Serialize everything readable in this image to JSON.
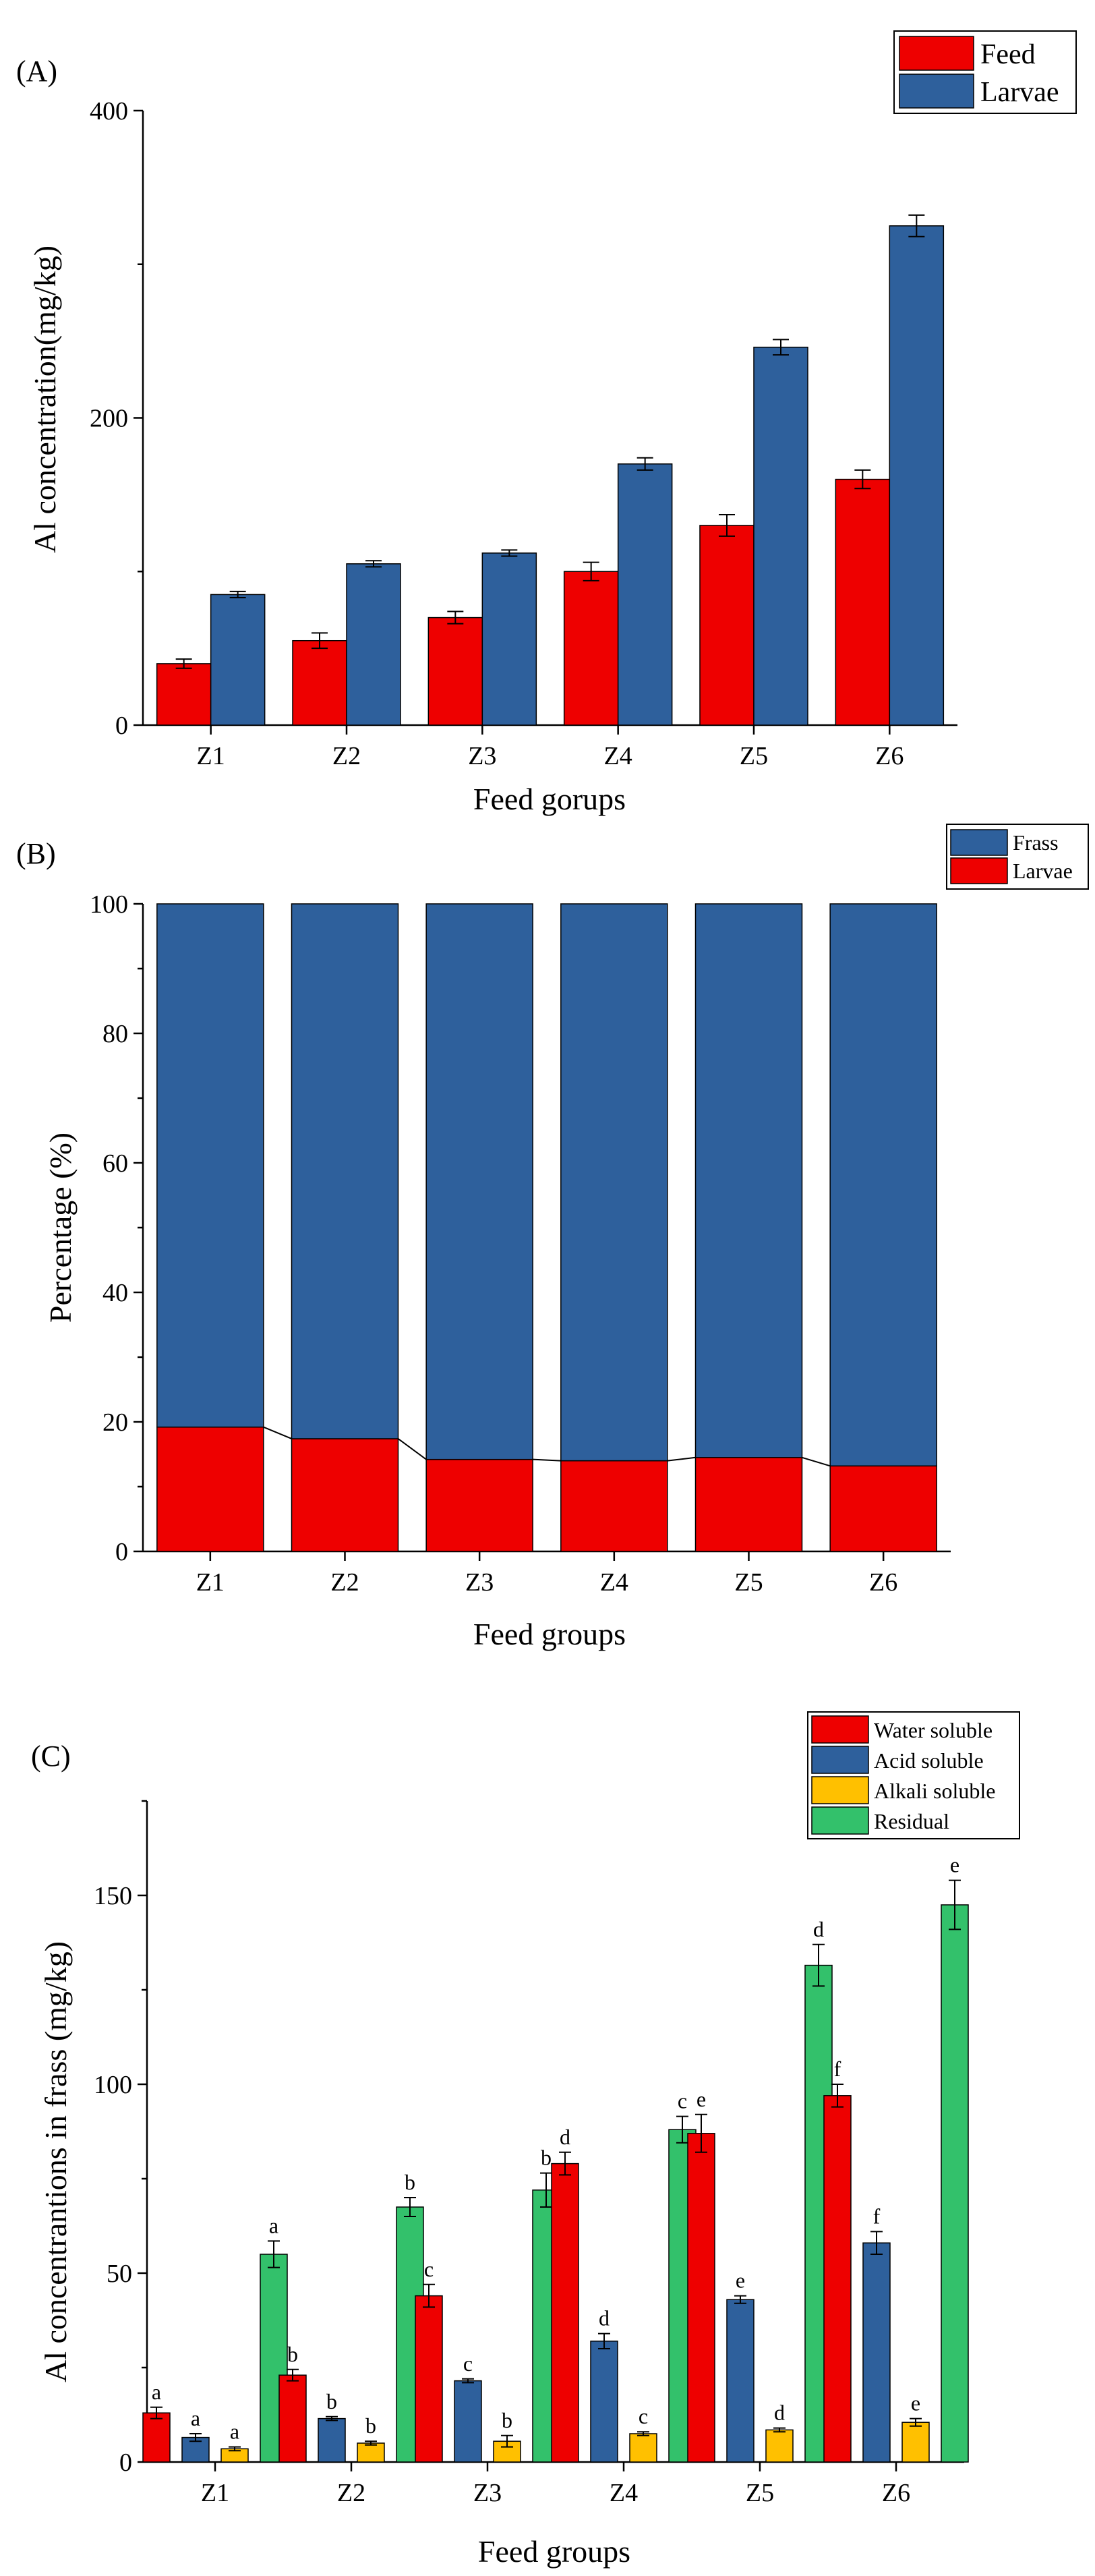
{
  "chart_data": [
    {
      "panel": "(A)",
      "type": "bar",
      "categories": [
        "Z1",
        "Z2",
        "Z3",
        "Z4",
        "Z5",
        "Z6"
      ],
      "series": [
        {
          "name": "Feed",
          "color": "#ee0000",
          "values": [
            40,
            55,
            70,
            100,
            130,
            160
          ],
          "errors": [
            3,
            5,
            4,
            6,
            7,
            6
          ]
        },
        {
          "name": "Larvae",
          "color": "#2e609c",
          "values": [
            85,
            105,
            112,
            170,
            246,
            325
          ],
          "errors": [
            2,
            2,
            2,
            4,
            5,
            7
          ]
        }
      ],
      "xlabel": "Feed gorups",
      "ylabel": "Al concentration(mg/kg)",
      "ylim": [
        0,
        400
      ],
      "yticks": [
        0,
        200,
        400
      ],
      "legend_position": "top-right"
    },
    {
      "panel": "(B)",
      "type": "bar",
      "stacked": true,
      "categories": [
        "Z1",
        "Z2",
        "Z3",
        "Z4",
        "Z5",
        "Z6"
      ],
      "series": [
        {
          "name": "Larvae",
          "color": "#ee0000",
          "values": [
            19.2,
            17.4,
            14.2,
            14.0,
            14.5,
            13.2
          ]
        },
        {
          "name": "Frass",
          "color": "#2e609c",
          "values": [
            80.8,
            82.6,
            85.8,
            86.0,
            85.5,
            86.8
          ]
        }
      ],
      "legend_order": [
        "Frass",
        "Larvae"
      ],
      "xlabel": "Feed groups",
      "ylabel": "Percentage (%)",
      "ylim": [
        0,
        100
      ],
      "yticks": [
        0,
        20,
        40,
        60,
        80,
        100
      ],
      "legend_position": "top-right"
    },
    {
      "panel": "(C)",
      "type": "bar",
      "categories": [
        "Z1",
        "Z2",
        "Z3",
        "Z4",
        "Z5",
        "Z6"
      ],
      "series": [
        {
          "name": "Water soluble",
          "color": "#ee0000",
          "values": [
            13,
            23,
            44,
            79,
            87,
            97
          ],
          "errors": [
            1.5,
            1.5,
            3,
            3,
            5,
            3
          ],
          "labels": [
            "a",
            "b",
            "c",
            "d",
            "e",
            "f"
          ]
        },
        {
          "name": "Acid soluble",
          "color": "#2e609c",
          "values": [
            6.5,
            11.5,
            21.5,
            32,
            43,
            58
          ],
          "errors": [
            1,
            0.5,
            0.5,
            2,
            1,
            3
          ],
          "labels": [
            "a",
            "b",
            "c",
            "d",
            "e",
            "f"
          ]
        },
        {
          "name": "Alkali soluble",
          "color": "#ffc000",
          "values": [
            3.5,
            5,
            5.5,
            7.5,
            8.5,
            10.5
          ],
          "errors": [
            0.5,
            0.5,
            1.5,
            0.5,
            0.5,
            1
          ],
          "labels": [
            "a",
            "b",
            "b",
            "c",
            "d",
            "e"
          ]
        },
        {
          "name": "Residual",
          "color": "#33c16b",
          "values": [
            55,
            67.5,
            72,
            88,
            131.5,
            147.5
          ],
          "errors": [
            3.5,
            2.5,
            4.5,
            3.5,
            5.5,
            6.5
          ],
          "labels": [
            "a",
            "b",
            "b",
            "c",
            "d",
            "e"
          ]
        }
      ],
      "xlabel": "Feed groups",
      "ylabel": "Al concentrantions in frass (mg/kg)",
      "ylim": [
        0,
        175
      ],
      "yticks": [
        0,
        50,
        100,
        150
      ],
      "legend_position": "top-right"
    }
  ]
}
